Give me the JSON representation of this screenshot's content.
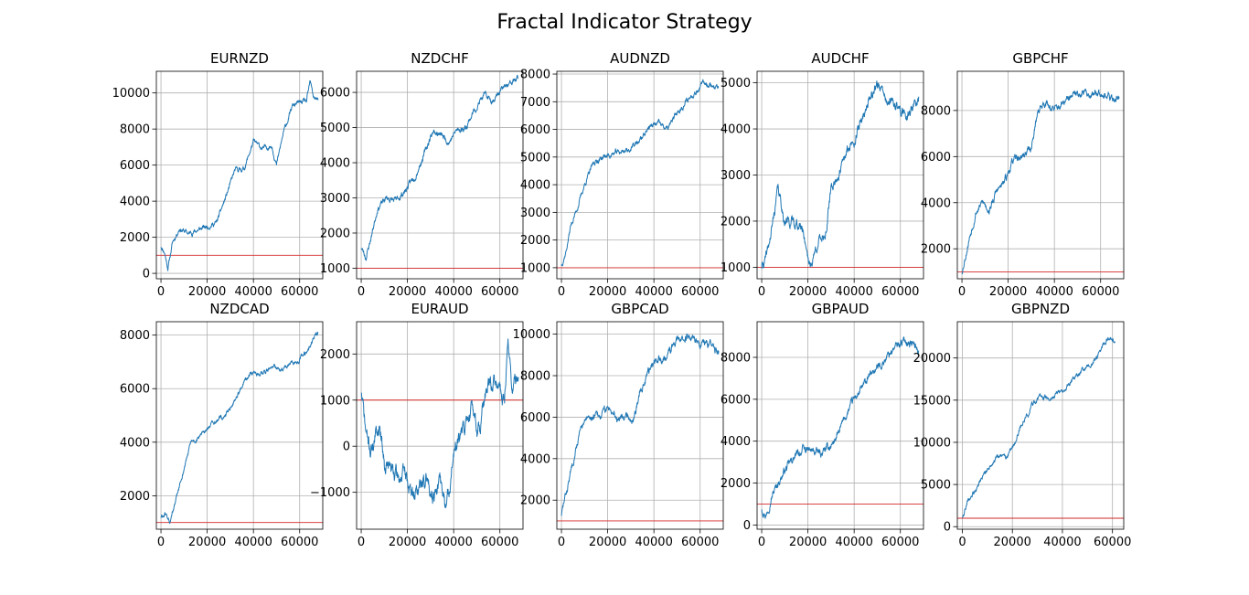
{
  "figure": {
    "title": "Fractal Indicator Strategy"
  },
  "style": {
    "line_color": "#1f77b4",
    "reference_color": "#d62728",
    "grid_color": "#b0b0b0"
  },
  "chart_data": [
    {
      "type": "line",
      "title": "EURNZD",
      "grid": true,
      "xlim": [
        -2000,
        70000
      ],
      "ylim": [
        -300,
        11200
      ],
      "xticks": [
        0,
        20000,
        40000,
        60000
      ],
      "yticks": [
        0,
        2000,
        4000,
        6000,
        8000,
        10000
      ],
      "reference_line": 1000,
      "seed": 11,
      "noise": 110,
      "series": [
        {
          "points": [
            [
              0,
              1500
            ],
            [
              1500,
              1200
            ],
            [
              3000,
              300
            ],
            [
              5000,
              1700
            ],
            [
              8000,
              2500
            ],
            [
              12000,
              2200
            ],
            [
              18000,
              2500
            ],
            [
              24000,
              2800
            ],
            [
              28000,
              4200
            ],
            [
              32000,
              5700
            ],
            [
              36000,
              5800
            ],
            [
              40000,
              7300
            ],
            [
              44000,
              6900
            ],
            [
              48000,
              7100
            ],
            [
              50000,
              6000
            ],
            [
              53000,
              7800
            ],
            [
              57000,
              9300
            ],
            [
              61000,
              9500
            ],
            [
              63000,
              9500
            ],
            [
              64500,
              10600
            ],
            [
              66000,
              9800
            ],
            [
              68000,
              9600
            ]
          ]
        }
      ]
    },
    {
      "type": "line",
      "title": "NZDCHF",
      "grid": true,
      "xlim": [
        -2000,
        70000
      ],
      "ylim": [
        700,
        6600
      ],
      "xticks": [
        0,
        20000,
        40000,
        60000
      ],
      "yticks": [
        1000,
        2000,
        3000,
        4000,
        5000,
        6000
      ],
      "reference_line": 1000,
      "seed": 23,
      "noise": 70,
      "series": [
        {
          "points": [
            [
              0,
              1600
            ],
            [
              2000,
              1300
            ],
            [
              4000,
              1800
            ],
            [
              7000,
              2700
            ],
            [
              11000,
              3000
            ],
            [
              15000,
              2900
            ],
            [
              19000,
              3200
            ],
            [
              23000,
              3600
            ],
            [
              27000,
              4200
            ],
            [
              31000,
              4900
            ],
            [
              34000,
              4800
            ],
            [
              38000,
              4600
            ],
            [
              41000,
              4900
            ],
            [
              45000,
              5000
            ],
            [
              49000,
              5500
            ],
            [
              53000,
              5900
            ],
            [
              57000,
              5800
            ],
            [
              61000,
              6100
            ],
            [
              64000,
              6200
            ],
            [
              68000,
              6400
            ]
          ]
        }
      ]
    },
    {
      "type": "line",
      "title": "AUDNZD",
      "grid": true,
      "xlim": [
        -2000,
        70000
      ],
      "ylim": [
        600,
        8100
      ],
      "xticks": [
        0,
        20000,
        40000,
        60000
      ],
      "yticks": [
        1000,
        2000,
        3000,
        4000,
        5000,
        6000,
        7000,
        8000
      ],
      "reference_line": 1000,
      "seed": 37,
      "noise": 80,
      "series": [
        {
          "points": [
            [
              0,
              1100
            ],
            [
              2000,
              1600
            ],
            [
              4000,
              2500
            ],
            [
              7000,
              3200
            ],
            [
              10000,
              4000
            ],
            [
              14000,
              4800
            ],
            [
              18000,
              5000
            ],
            [
              22000,
              5100
            ],
            [
              26000,
              5200
            ],
            [
              30000,
              5300
            ],
            [
              34000,
              5600
            ],
            [
              38000,
              6100
            ],
            [
              42000,
              6200
            ],
            [
              46000,
              6000
            ],
            [
              50000,
              6600
            ],
            [
              54000,
              7000
            ],
            [
              58000,
              7400
            ],
            [
              62000,
              7700
            ],
            [
              65000,
              7600
            ],
            [
              68000,
              7500
            ]
          ]
        }
      ]
    },
    {
      "type": "line",
      "title": "AUDCHF",
      "grid": true,
      "xlim": [
        -2000,
        70000
      ],
      "ylim": [
        750,
        5250
      ],
      "xticks": [
        0,
        20000,
        40000,
        60000
      ],
      "yticks": [
        1000,
        2000,
        3000,
        4000,
        5000
      ],
      "reference_line": 1000,
      "seed": 41,
      "noise": 90,
      "series": [
        {
          "points": [
            [
              0,
              1000
            ],
            [
              2000,
              1200
            ],
            [
              4000,
              1700
            ],
            [
              7000,
              2700
            ],
            [
              10000,
              2000
            ],
            [
              14000,
              2000
            ],
            [
              18000,
              1800
            ],
            [
              21000,
              1000
            ],
            [
              24000,
              1500
            ],
            [
              28000,
              1800
            ],
            [
              30000,
              2700
            ],
            [
              34000,
              3100
            ],
            [
              38000,
              3600
            ],
            [
              42000,
              4000
            ],
            [
              46000,
              4600
            ],
            [
              50000,
              5000
            ],
            [
              54000,
              4600
            ],
            [
              58000,
              4500
            ],
            [
              62000,
              4300
            ],
            [
              65000,
              4400
            ],
            [
              68000,
              4700
            ]
          ]
        }
      ]
    },
    {
      "type": "line",
      "title": "GBPCHF",
      "grid": true,
      "xlim": [
        -2000,
        70000
      ],
      "ylim": [
        700,
        9700
      ],
      "xticks": [
        0,
        20000,
        40000,
        60000
      ],
      "yticks": [
        2000,
        4000,
        6000,
        8000
      ],
      "reference_line": 1000,
      "seed": 53,
      "noise": 130,
      "series": [
        {
          "points": [
            [
              0,
              1000
            ],
            [
              3000,
              2400
            ],
            [
              6000,
              3600
            ],
            [
              9000,
              4000
            ],
            [
              12000,
              3700
            ],
            [
              15000,
              4500
            ],
            [
              18000,
              4800
            ],
            [
              22000,
              5800
            ],
            [
              26000,
              6000
            ],
            [
              30000,
              6400
            ],
            [
              33000,
              8000
            ],
            [
              36000,
              8400
            ],
            [
              40000,
              8000
            ],
            [
              44000,
              8300
            ],
            [
              48000,
              8600
            ],
            [
              52000,
              8800
            ],
            [
              56000,
              8700
            ],
            [
              60000,
              8900
            ],
            [
              64000,
              8500
            ],
            [
              68000,
              8600
            ]
          ]
        }
      ]
    },
    {
      "type": "line",
      "title": "NZDCAD",
      "grid": true,
      "xlim": [
        -2000,
        70000
      ],
      "ylim": [
        750,
        8500
      ],
      "xticks": [
        0,
        20000,
        40000,
        60000
      ],
      "yticks": [
        2000,
        4000,
        6000,
        8000
      ],
      "reference_line": 1000,
      "seed": 61,
      "noise": 70,
      "series": [
        {
          "points": [
            [
              0,
              1200
            ],
            [
              2000,
              1300
            ],
            [
              4000,
              1000
            ],
            [
              7000,
              2000
            ],
            [
              10000,
              3000
            ],
            [
              13000,
              4000
            ],
            [
              16000,
              4100
            ],
            [
              20000,
              4500
            ],
            [
              24000,
              4800
            ],
            [
              28000,
              5000
            ],
            [
              32000,
              5600
            ],
            [
              36000,
              6200
            ],
            [
              40000,
              6600
            ],
            [
              44000,
              6600
            ],
            [
              48000,
              6800
            ],
            [
              52000,
              6700
            ],
            [
              56000,
              6900
            ],
            [
              60000,
              7100
            ],
            [
              63000,
              7400
            ],
            [
              66000,
              7900
            ],
            [
              68000,
              8100
            ]
          ]
        }
      ]
    },
    {
      "type": "line",
      "title": "EURAUD",
      "grid": true,
      "xlim": [
        -2000,
        70000
      ],
      "ylim": [
        -1800,
        2700
      ],
      "xticks": [
        0,
        20000,
        40000,
        60000
      ],
      "yticks": [
        -1000,
        0,
        1000,
        2000
      ],
      "reference_line": 1000,
      "seed": 71,
      "noise": 140,
      "series": [
        {
          "points": [
            [
              0,
              1200
            ],
            [
              2000,
              300
            ],
            [
              4000,
              -100
            ],
            [
              6000,
              200
            ],
            [
              8000,
              500
            ],
            [
              10000,
              -300
            ],
            [
              13000,
              -500
            ],
            [
              16000,
              -700
            ],
            [
              19000,
              -600
            ],
            [
              22000,
              -1100
            ],
            [
              25000,
              -900
            ],
            [
              28000,
              -700
            ],
            [
              31000,
              -1000
            ],
            [
              34000,
              -800
            ],
            [
              37000,
              -1300
            ],
            [
              40000,
              -200
            ],
            [
              44000,
              300
            ],
            [
              48000,
              900
            ],
            [
              51000,
              300
            ],
            [
              54000,
              1100
            ],
            [
              57000,
              1400
            ],
            [
              60000,
              1200
            ],
            [
              62000,
              1000
            ],
            [
              63500,
              2400
            ],
            [
              65000,
              1300
            ],
            [
              68000,
              1500
            ]
          ]
        }
      ]
    },
    {
      "type": "line",
      "title": "GBPCAD",
      "grid": true,
      "xlim": [
        -2000,
        70000
      ],
      "ylim": [
        600,
        10600
      ],
      "xticks": [
        0,
        20000,
        40000,
        60000
      ],
      "yticks": [
        2000,
        4000,
        6000,
        8000,
        10000
      ],
      "reference_line": 1000,
      "seed": 83,
      "noise": 150,
      "series": [
        {
          "points": [
            [
              0,
              1300
            ],
            [
              3000,
              2800
            ],
            [
              6000,
              4500
            ],
            [
              9000,
              5600
            ],
            [
              13000,
              6000
            ],
            [
              17000,
              6100
            ],
            [
              21000,
              6500
            ],
            [
              24000,
              6000
            ],
            [
              28000,
              6200
            ],
            [
              31000,
              5800
            ],
            [
              34000,
              7200
            ],
            [
              37000,
              8200
            ],
            [
              40000,
              8600
            ],
            [
              44000,
              8800
            ],
            [
              48000,
              9400
            ],
            [
              52000,
              9800
            ],
            [
              56000,
              9900
            ],
            [
              60000,
              9600
            ],
            [
              64000,
              9400
            ],
            [
              68000,
              9200
            ]
          ]
        }
      ]
    },
    {
      "type": "line",
      "title": "GBPAUD",
      "grid": true,
      "xlim": [
        -2000,
        70000
      ],
      "ylim": [
        -200,
        9700
      ],
      "xticks": [
        0,
        20000,
        40000,
        60000
      ],
      "yticks": [
        0,
        2000,
        4000,
        6000,
        8000
      ],
      "reference_line": 1000,
      "seed": 97,
      "noise": 150,
      "series": [
        {
          "points": [
            [
              0,
              800
            ],
            [
              2000,
              500
            ],
            [
              4000,
              1300
            ],
            [
              7000,
              2000
            ],
            [
              10000,
              2600
            ],
            [
              14000,
              3200
            ],
            [
              18000,
              3600
            ],
            [
              22000,
              3500
            ],
            [
              26000,
              3400
            ],
            [
              30000,
              3800
            ],
            [
              33000,
              4300
            ],
            [
              36000,
              5100
            ],
            [
              40000,
              6000
            ],
            [
              44000,
              6600
            ],
            [
              48000,
              7300
            ],
            [
              52000,
              7700
            ],
            [
              56000,
              8300
            ],
            [
              60000,
              8700
            ],
            [
              63000,
              8800
            ],
            [
              66000,
              8600
            ],
            [
              68000,
              8300
            ]
          ]
        }
      ]
    },
    {
      "type": "line",
      "title": "GBPNZD",
      "grid": true,
      "xlim": [
        -2000,
        64500
      ],
      "ylim": [
        -300,
        24300
      ],
      "xticks": [
        0,
        20000,
        40000,
        60000
      ],
      "yticks": [
        0,
        5000,
        10000,
        15000,
        20000
      ],
      "reference_line": 1000,
      "seed": 109,
      "noise": 250,
      "series": [
        {
          "points": [
            [
              0,
              1200
            ],
            [
              2000,
              2800
            ],
            [
              5000,
              4200
            ],
            [
              8000,
              6000
            ],
            [
              11000,
              7200
            ],
            [
              14000,
              8200
            ],
            [
              18000,
              8300
            ],
            [
              21000,
              10000
            ],
            [
              24000,
              12400
            ],
            [
              27000,
              13800
            ],
            [
              30000,
              15100
            ],
            [
              33000,
              15400
            ],
            [
              36000,
              15500
            ],
            [
              40000,
              16000
            ],
            [
              44000,
              17200
            ],
            [
              48000,
              18500
            ],
            [
              52000,
              19400
            ],
            [
              55000,
              20600
            ],
            [
              57000,
              22000
            ],
            [
              59000,
              22600
            ],
            [
              61000,
              21800
            ]
          ]
        }
      ]
    }
  ]
}
